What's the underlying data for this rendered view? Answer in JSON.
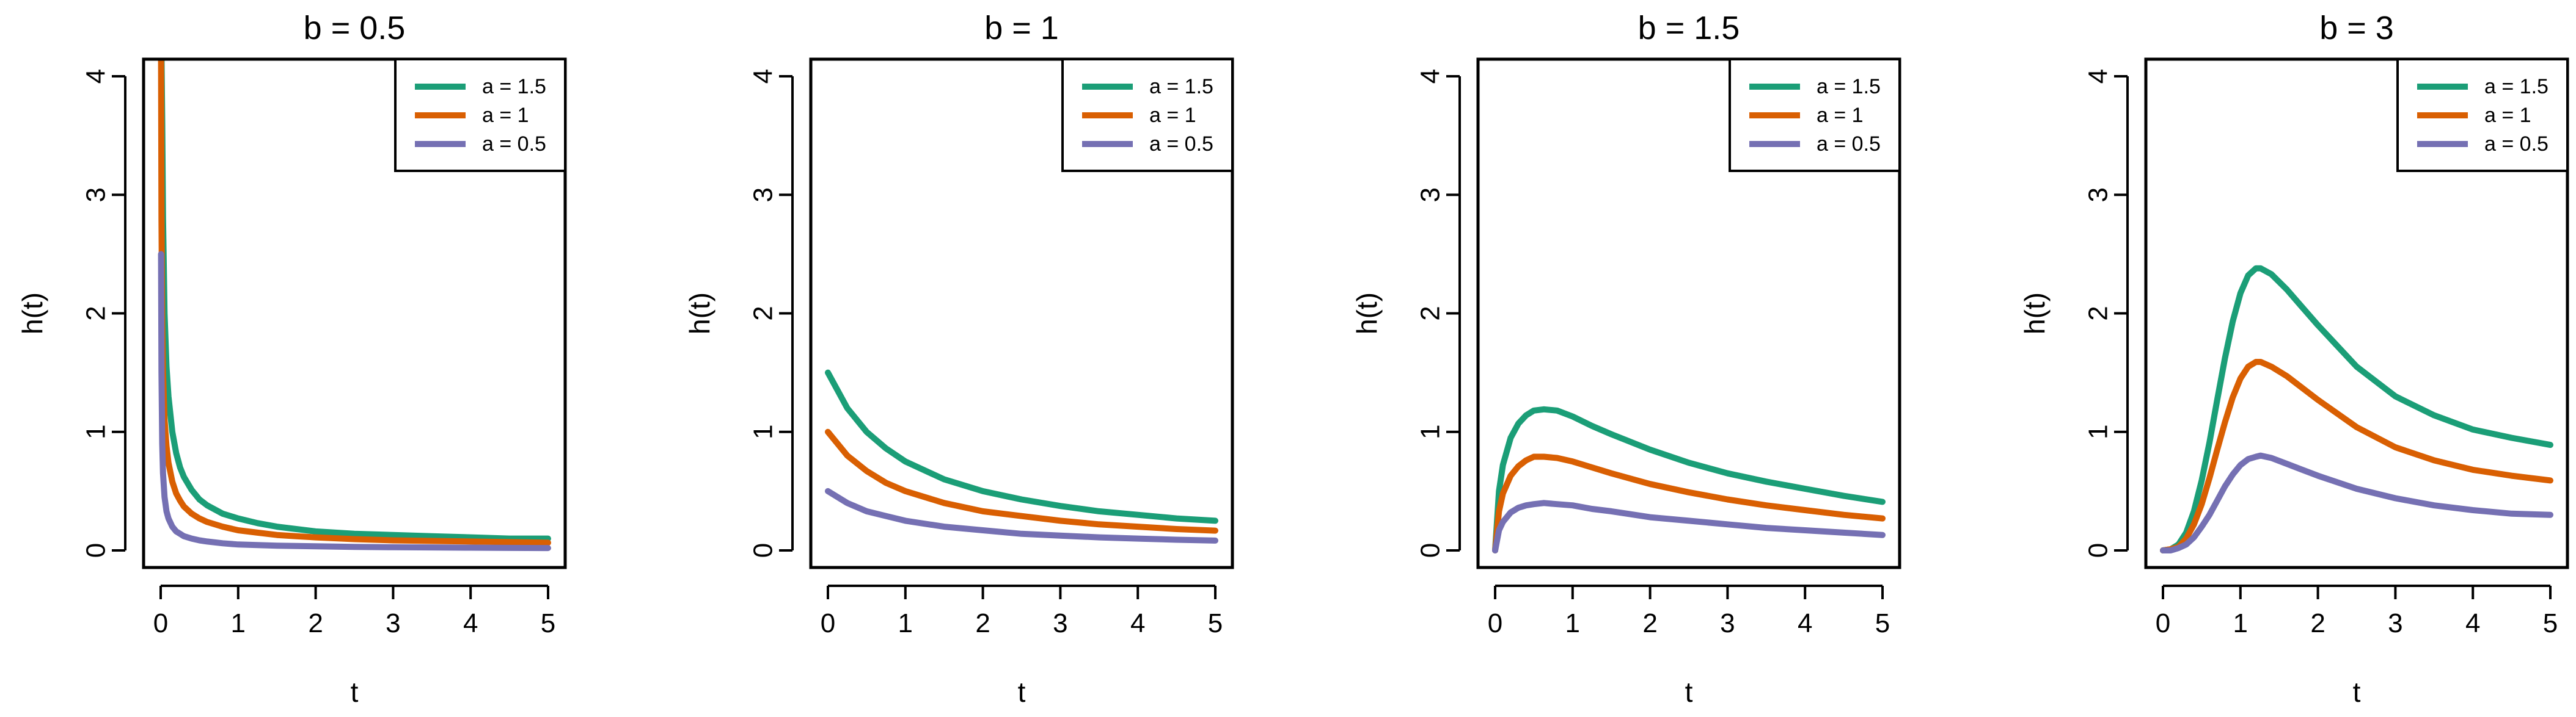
{
  "figure": {
    "ylabel": "h(t)",
    "xlabel": "t"
  },
  "chart_data": [
    {
      "type": "line",
      "title": "b = 0.5",
      "xlabel": "t",
      "ylabel": "h(t)",
      "xlim": [
        0,
        5
      ],
      "ylim": [
        0,
        4
      ],
      "xticks": [
        0,
        1,
        2,
        3,
        4,
        5
      ],
      "yticks": [
        0,
        1,
        2,
        3,
        4
      ],
      "legend_position": "top-right",
      "x": [
        0.005,
        0.01,
        0.02,
        0.03,
        0.05,
        0.075,
        0.1,
        0.15,
        0.2,
        0.25,
        0.3,
        0.4,
        0.5,
        0.6,
        0.8,
        1.0,
        1.25,
        1.5,
        1.75,
        2.0,
        2.5,
        3.0,
        3.5,
        4.0,
        4.5,
        5.0
      ],
      "series": [
        {
          "name": "a = 1.5",
          "color": "#1b9e77",
          "values": [
            4.2,
            4.2,
            3.6,
            2.8,
            2.0,
            1.55,
            1.3,
            1.0,
            0.82,
            0.7,
            0.62,
            0.51,
            0.43,
            0.38,
            0.31,
            0.27,
            0.23,
            0.2,
            0.18,
            0.16,
            0.14,
            0.13,
            0.12,
            0.11,
            0.1,
            0.1
          ]
        },
        {
          "name": "a = 1",
          "color": "#d95f02",
          "values": [
            4.2,
            2.8,
            1.9,
            1.5,
            1.1,
            0.88,
            0.74,
            0.58,
            0.48,
            0.42,
            0.37,
            0.31,
            0.27,
            0.24,
            0.2,
            0.17,
            0.15,
            0.13,
            0.12,
            0.11,
            0.095,
            0.085,
            0.08,
            0.075,
            0.07,
            0.065
          ]
        },
        {
          "name": "a = 0.5",
          "color": "#7570b3",
          "values": [
            2.5,
            1.5,
            0.9,
            0.65,
            0.45,
            0.33,
            0.27,
            0.2,
            0.16,
            0.14,
            0.12,
            0.1,
            0.085,
            0.075,
            0.06,
            0.05,
            0.045,
            0.04,
            0.037,
            0.035,
            0.03,
            0.027,
            0.025,
            0.023,
            0.021,
            0.02
          ]
        }
      ]
    },
    {
      "type": "line",
      "title": "b = 1",
      "xlabel": "t",
      "ylabel": "h(t)",
      "xlim": [
        0,
        5
      ],
      "ylim": [
        0,
        4
      ],
      "xticks": [
        0,
        1,
        2,
        3,
        4,
        5
      ],
      "yticks": [
        0,
        1,
        2,
        3,
        4
      ],
      "legend_position": "top-right",
      "x": [
        0,
        0.25,
        0.5,
        0.75,
        1.0,
        1.5,
        2.0,
        2.5,
        3.0,
        3.5,
        4.0,
        4.5,
        5.0
      ],
      "series": [
        {
          "name": "a = 1.5",
          "color": "#1b9e77",
          "values": [
            1.5,
            1.2,
            1.0,
            0.86,
            0.75,
            0.6,
            0.5,
            0.43,
            0.375,
            0.33,
            0.3,
            0.27,
            0.25
          ]
        },
        {
          "name": "a = 1",
          "color": "#d95f02",
          "values": [
            1.0,
            0.8,
            0.67,
            0.57,
            0.5,
            0.4,
            0.33,
            0.29,
            0.25,
            0.22,
            0.2,
            0.18,
            0.167
          ]
        },
        {
          "name": "a = 0.5",
          "color": "#7570b3",
          "values": [
            0.5,
            0.4,
            0.33,
            0.29,
            0.25,
            0.2,
            0.17,
            0.14,
            0.125,
            0.11,
            0.1,
            0.09,
            0.083
          ]
        }
      ]
    },
    {
      "type": "line",
      "title": "b = 1.5",
      "xlabel": "t",
      "ylabel": "h(t)",
      "xlim": [
        0,
        5
      ],
      "ylim": [
        0,
        4
      ],
      "xticks": [
        0,
        1,
        2,
        3,
        4,
        5
      ],
      "yticks": [
        0,
        1,
        2,
        3,
        4
      ],
      "legend_position": "top-right",
      "x": [
        0,
        0.05,
        0.1,
        0.2,
        0.3,
        0.4,
        0.5,
        0.63,
        0.8,
        1.0,
        1.25,
        1.5,
        2.0,
        2.5,
        3.0,
        3.5,
        4.0,
        4.5,
        5.0
      ],
      "series": [
        {
          "name": "a = 1.5",
          "color": "#1b9e77",
          "values": [
            0,
            0.5,
            0.72,
            0.95,
            1.07,
            1.14,
            1.18,
            1.19,
            1.18,
            1.13,
            1.05,
            0.98,
            0.85,
            0.74,
            0.65,
            0.58,
            0.52,
            0.46,
            0.41
          ]
        },
        {
          "name": "a = 1",
          "color": "#d95f02",
          "values": [
            0,
            0.33,
            0.48,
            0.63,
            0.71,
            0.76,
            0.79,
            0.79,
            0.78,
            0.75,
            0.7,
            0.65,
            0.56,
            0.49,
            0.43,
            0.38,
            0.34,
            0.3,
            0.27
          ]
        },
        {
          "name": "a = 0.5",
          "color": "#7570b3",
          "values": [
            0,
            0.17,
            0.24,
            0.32,
            0.36,
            0.38,
            0.39,
            0.4,
            0.39,
            0.38,
            0.35,
            0.33,
            0.28,
            0.25,
            0.22,
            0.19,
            0.17,
            0.15,
            0.13
          ]
        }
      ]
    },
    {
      "type": "line",
      "title": "b = 3",
      "xlabel": "t",
      "ylabel": "h(t)",
      "xlim": [
        0,
        5
      ],
      "ylim": [
        0,
        4
      ],
      "xticks": [
        0,
        1,
        2,
        3,
        4,
        5
      ],
      "yticks": [
        0,
        1,
        2,
        3,
        4
      ],
      "legend_position": "top-right",
      "x": [
        0,
        0.1,
        0.2,
        0.3,
        0.4,
        0.5,
        0.6,
        0.7,
        0.8,
        0.9,
        1.0,
        1.1,
        1.2,
        1.26,
        1.4,
        1.6,
        1.8,
        2.0,
        2.5,
        3.0,
        3.5,
        4.0,
        4.5,
        5.0
      ],
      "series": [
        {
          "name": "a = 1.5",
          "color": "#1b9e77",
          "values": [
            0,
            0.01,
            0.05,
            0.15,
            0.33,
            0.59,
            0.91,
            1.27,
            1.62,
            1.93,
            2.17,
            2.32,
            2.38,
            2.38,
            2.33,
            2.2,
            2.05,
            1.9,
            1.55,
            1.3,
            1.14,
            1.02,
            0.95,
            0.89
          ]
        },
        {
          "name": "a = 1",
          "color": "#d95f02",
          "values": [
            0,
            0.01,
            0.03,
            0.1,
            0.22,
            0.39,
            0.61,
            0.85,
            1.08,
            1.29,
            1.45,
            1.55,
            1.59,
            1.59,
            1.55,
            1.47,
            1.37,
            1.27,
            1.04,
            0.87,
            0.76,
            0.68,
            0.63,
            0.59
          ]
        },
        {
          "name": "a = 0.5",
          "color": "#7570b3",
          "values": [
            0,
            0.0,
            0.02,
            0.05,
            0.11,
            0.2,
            0.3,
            0.42,
            0.54,
            0.64,
            0.72,
            0.77,
            0.79,
            0.8,
            0.78,
            0.73,
            0.68,
            0.63,
            0.52,
            0.44,
            0.38,
            0.34,
            0.31,
            0.3
          ]
        }
      ]
    }
  ]
}
